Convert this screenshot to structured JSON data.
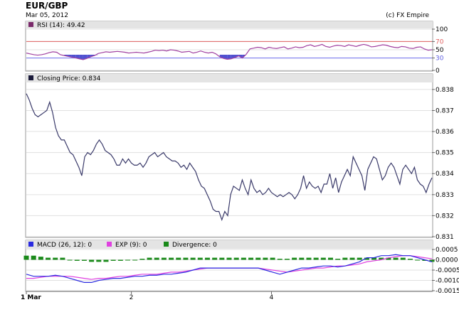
{
  "header": {
    "title": "EUR/GBP",
    "date": "Mar 05, 2012",
    "copyright": "(c) FX Empire"
  },
  "colors": {
    "price_line": "#3a3a6a",
    "rsi_line": "#a040a0",
    "rsi_fill_below": "#5050d0",
    "rsi_upper_line": "#e06060",
    "rsi_lower_line": "#7070f0",
    "macd_line": "#2a2ae0",
    "exp_line": "#e040e0",
    "divergence_bar": "#1a8a1a",
    "panel_header_bg": "#e4e4e4",
    "grid": "#e0e0e0"
  },
  "chart_data": [
    {
      "type": "line",
      "name": "rsi",
      "legend": "RSI (14): 49.42",
      "legend_color": "#7a2a6a",
      "ylim": [
        0,
        100
      ],
      "y_ticks": [
        "100",
        "70",
        "50",
        "30",
        "0"
      ],
      "y_tick_values": [
        100,
        70,
        50,
        30,
        0
      ],
      "reference_lines": [
        70,
        30
      ],
      "values": [
        42,
        40,
        38,
        37,
        38,
        40,
        43,
        45,
        44,
        38,
        36,
        34,
        32,
        30,
        28,
        26,
        29,
        33,
        36,
        41,
        43,
        45,
        44,
        45,
        46,
        45,
        44,
        42,
        43,
        44,
        43,
        42,
        44,
        46,
        49,
        48,
        49,
        47,
        50,
        49,
        47,
        44,
        45,
        46,
        42,
        44,
        47,
        44,
        42,
        44,
        40,
        33,
        29,
        27,
        28,
        31,
        35,
        30,
        39,
        52,
        54,
        56,
        55,
        52,
        56,
        54,
        53,
        55,
        57,
        52,
        54,
        57,
        55,
        56,
        60,
        62,
        58,
        60,
        63,
        58,
        56,
        59,
        61,
        60,
        58,
        62,
        60,
        58,
        61,
        63,
        61,
        57,
        58,
        60,
        62,
        61,
        58,
        56,
        55,
        58,
        57,
        54,
        53,
        56,
        57,
        52,
        49,
        50
      ]
    },
    {
      "type": "line",
      "name": "closing-price",
      "legend": "Closing Price: 0.834",
      "legend_color": "#1a1a3a",
      "ylim": [
        0.831,
        0.8383
      ],
      "y_ticks": [
        "0.838",
        "0.837",
        "0.836",
        "0.835",
        "0.834",
        "0.833",
        "0.832",
        "0.831"
      ],
      "y_tick_values": [
        0.838,
        0.837,
        0.836,
        0.835,
        0.834,
        0.833,
        0.832,
        0.831
      ],
      "x_ticks": [
        "1 Mar",
        "2",
        "4"
      ],
      "x_tick_index": [
        0,
        36,
        84
      ],
      "values": [
        0.8378,
        0.8375,
        0.8371,
        0.8368,
        0.8367,
        0.8368,
        0.8369,
        0.837,
        0.8374,
        0.8369,
        0.8362,
        0.8358,
        0.8356,
        0.8356,
        0.8353,
        0.835,
        0.8349,
        0.8346,
        0.8343,
        0.8339,
        0.8348,
        0.835,
        0.8349,
        0.8351,
        0.8354,
        0.8356,
        0.8354,
        0.8351,
        0.835,
        0.8349,
        0.8347,
        0.8344,
        0.8344,
        0.8347,
        0.8345,
        0.8347,
        0.8345,
        0.8344,
        0.8344,
        0.8345,
        0.8343,
        0.8345,
        0.8348,
        0.8349,
        0.835,
        0.8348,
        0.8349,
        0.835,
        0.8348,
        0.8347,
        0.8346,
        0.8346,
        0.8345,
        0.8343,
        0.8344,
        0.8342,
        0.8345,
        0.8343,
        0.8341,
        0.8337,
        0.8334,
        0.8333,
        0.833,
        0.8327,
        0.8323,
        0.8322,
        0.8322,
        0.8318,
        0.8322,
        0.832,
        0.833,
        0.8334,
        0.8333,
        0.8332,
        0.8337,
        0.8333,
        0.833,
        0.8337,
        0.8333,
        0.8331,
        0.8332,
        0.833,
        0.8331,
        0.8333,
        0.8331,
        0.833,
        0.8329,
        0.833,
        0.8329,
        0.833,
        0.8331,
        0.833,
        0.8328,
        0.833,
        0.8333,
        0.8339,
        0.8333,
        0.8336,
        0.8334,
        0.8333,
        0.8334,
        0.8331,
        0.8335,
        0.8335,
        0.834,
        0.8333,
        0.8338,
        0.8331,
        0.8336,
        0.8339,
        0.8342,
        0.8339,
        0.8348,
        0.8345,
        0.8342,
        0.8339,
        0.8332,
        0.8342,
        0.8345,
        0.8348,
        0.8347,
        0.8342,
        0.8337,
        0.8339,
        0.8343,
        0.8345,
        0.8343,
        0.8339,
        0.8335,
        0.8342,
        0.8344,
        0.8342,
        0.834,
        0.8343,
        0.8337,
        0.8335,
        0.8334,
        0.8331,
        0.8335,
        0.8338
      ],
      "legend_series_note": ""
    },
    {
      "type": "line",
      "name": "macd",
      "ylim": [
        -0.0015,
        0.0005
      ],
      "y_ticks": [
        "0.0005",
        "0.0000",
        "-0.0005",
        "-0.0010",
        "-0.0015"
      ],
      "y_tick_values": [
        0.0005,
        0.0,
        -0.0005,
        -0.001,
        -0.0015
      ],
      "legend_items": [
        {
          "label": "MACD (26, 12): 0",
          "color": "#2a2ae0"
        },
        {
          "label": "EXP (9): 0",
          "color": "#e040e0"
        },
        {
          "label": "Divergence: 0",
          "color": "#1a8a1a"
        }
      ],
      "series": [
        {
          "name": "MACD (26, 12)",
          "values": [
            -0.0007,
            -0.0008,
            -0.0008,
            -0.0008,
            -0.00075,
            -0.0008,
            -0.0009,
            -0.001,
            -0.0011,
            -0.0011,
            -0.001,
            -0.00095,
            -0.0009,
            -0.0009,
            -0.00085,
            -0.0008,
            -0.0008,
            -0.00075,
            -0.00075,
            -0.0007,
            -0.0007,
            -0.00065,
            -0.0006,
            -0.0005,
            -0.0004,
            -0.0004,
            -0.0004,
            -0.0004,
            -0.0004,
            -0.0004,
            -0.0004,
            -0.0004,
            -0.0004,
            -0.0005,
            -0.0006,
            -0.0007,
            -0.0006,
            -0.0005,
            -0.0004,
            -0.0004,
            -0.00035,
            -0.0003,
            -0.0003,
            -0.00035,
            -0.0003,
            -0.0002,
            -0.0001,
            0.0001,
            0.0001,
            0.0002,
            0.0002,
            0.00025,
            0.0002,
            0.0002,
            0.0001,
            0.0,
            -0.0001
          ]
        },
        {
          "name": "EXP (9)",
          "values": [
            -0.0009,
            -0.0009,
            -0.00085,
            -0.0008,
            -0.0008,
            -0.0008,
            -0.0008,
            -0.00085,
            -0.0009,
            -0.00095,
            -0.0009,
            -0.0009,
            -0.00085,
            -0.0008,
            -0.0008,
            -0.00075,
            -0.0007,
            -0.0007,
            -0.0007,
            -0.00065,
            -0.0006,
            -0.0006,
            -0.00055,
            -0.0005,
            -0.00045,
            -0.0004,
            -0.0004,
            -0.0004,
            -0.0004,
            -0.0004,
            -0.0004,
            -0.0004,
            -0.0004,
            -0.00045,
            -0.0005,
            -0.00055,
            -0.0006,
            -0.00055,
            -0.0005,
            -0.00045,
            -0.0004,
            -0.0004,
            -0.00035,
            -0.0003,
            -0.0003,
            -0.00025,
            -0.0002,
            -0.0001,
            -5e-05,
            0.0,
            0.0001,
            0.00015,
            0.0002,
            0.0002,
            0.00015,
            0.0001,
            5e-05
          ]
        },
        {
          "name": "Divergence",
          "values": [
            0.0002,
            0.0002,
            0.00015,
            0.0001,
            0.0001,
            0.0001,
            0.0,
            -5e-05,
            -5e-05,
            -0.0001,
            -0.0001,
            -0.0001,
            -5e-05,
            -5e-05,
            0.0,
            0.0,
            5e-05,
            0.0001,
            0.0001,
            0.0001,
            0.0001,
            0.0001,
            0.0001,
            0.0001,
            0.0001,
            0.0001,
            0.0001,
            0.0001,
            0.0001,
            0.0001,
            0.0001,
            0.0001,
            0.0001,
            0.0001,
            0.0001,
            5e-05,
            5e-05,
            0.0001,
            0.0001,
            0.0001,
            0.0001,
            0.0001,
            0.0001,
            5e-05,
            0.0001,
            0.0001,
            0.0001,
            0.0001,
            0.0001,
            0.0001,
            0.0001,
            0.0001,
            0.0001,
            5e-05,
            0.0,
            -5e-05,
            -0.0001
          ]
        }
      ]
    }
  ]
}
